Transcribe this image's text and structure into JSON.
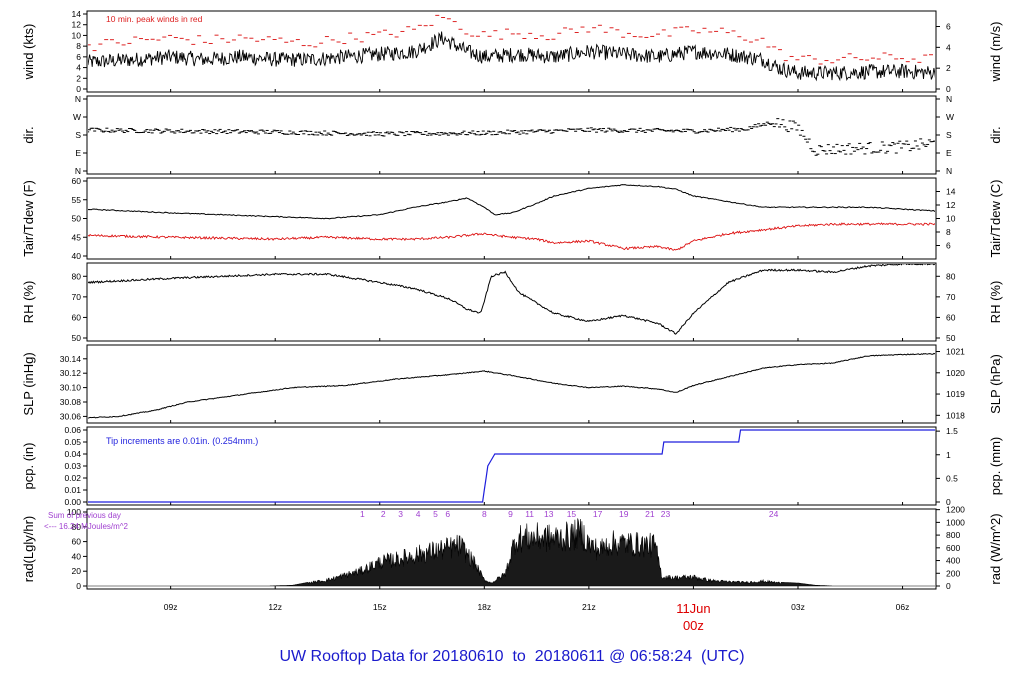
{
  "footer_title": "UW Rooftop Data for 20180610  to  20180611 @ 06:58:24  (UTC)",
  "colors": {
    "series": "#000000",
    "peak": "#dd2222",
    "dew": "#dd1111",
    "precip": "#1f1fdd",
    "rad_note": "#a040d0",
    "day_label": "#dd0000",
    "footer": "#1a1acc"
  },
  "x_axis": {
    "range_hours": [
      6.6,
      30.96
    ],
    "ticks": [
      {
        "h": 9,
        "label": "09z"
      },
      {
        "h": 12,
        "label": "12z"
      },
      {
        "h": 15,
        "label": "15z"
      },
      {
        "h": 18,
        "label": "18z"
      },
      {
        "h": 21,
        "label": "21z"
      },
      {
        "h": 24,
        "label": "00z"
      },
      {
        "h": 27,
        "label": "03z"
      },
      {
        "h": 30,
        "label": "06z"
      }
    ],
    "day_label": "11Jun",
    "day_label_hour": 24
  },
  "chart_data": [
    {
      "type": "line",
      "id": "wind",
      "ylabel_left": "wind (kts)",
      "ylabel_right": "wind (m/s)",
      "ylim": [
        0,
        14
      ],
      "left_ticks": [
        "0",
        "2",
        "4",
        "6",
        "8",
        "10",
        "12",
        "14"
      ],
      "right_ticks": [
        "0",
        "2",
        "4",
        "6"
      ],
      "annotation": "10 min. peak winds in red",
      "series": [
        {
          "name": "wind",
          "x": [
            6.6,
            8,
            9,
            10,
            11,
            12,
            13,
            14,
            15,
            16,
            16.8,
            17.5,
            18,
            19,
            20,
            21,
            22,
            23,
            24,
            25,
            26,
            26.5,
            27,
            28,
            29,
            30,
            30.96
          ],
          "values": [
            5,
            5.5,
            6,
            5.5,
            6,
            5.5,
            5.5,
            6,
            6.5,
            7,
            9.5,
            7,
            6,
            6.5,
            6,
            7,
            6.5,
            6,
            7,
            6.5,
            5.5,
            3.8,
            3,
            3,
            3.2,
            3.3,
            3
          ]
        },
        {
          "name": "peak",
          "x": [
            6.6,
            8,
            9,
            10,
            11,
            12,
            13,
            14,
            15,
            16,
            16.8,
            17.5,
            18,
            19,
            20,
            21,
            22,
            23,
            24,
            25,
            26,
            26.5,
            27,
            28,
            29,
            30,
            30.96
          ],
          "values": [
            8,
            9,
            9.5,
            9,
            9.5,
            9,
            8.5,
            9.5,
            10,
            11,
            13.5,
            11,
            10,
            10.5,
            10,
            11.5,
            10.5,
            10,
            11,
            10.5,
            9,
            6.5,
            5.5,
            5.5,
            5.8,
            5.8,
            5.5
          ]
        }
      ]
    },
    {
      "type": "scatter",
      "id": "dir",
      "ylabel_left": "dir.",
      "ylabel_right": "dir.",
      "ylim": [
        0,
        360
      ],
      "left_ticks": [
        "N",
        "E",
        "S",
        "W",
        "N"
      ],
      "right_ticks": [
        "N",
        "E",
        "S",
        "W",
        "N"
      ],
      "series": [
        {
          "name": "direction",
          "x": [
            6.6,
            9,
            12,
            15,
            18,
            21,
            24,
            25.5,
            26.3,
            27,
            27.5,
            28,
            29,
            30,
            30.96
          ],
          "values": [
            205,
            200,
            195,
            185,
            190,
            205,
            200,
            210,
            245,
            215,
            105,
            110,
            115,
            120,
            140
          ]
        }
      ]
    },
    {
      "type": "line",
      "id": "temp",
      "ylabel_left": "Tair/Tdew (F)",
      "ylabel_right": "Tair/Tdew (C)",
      "ylim": [
        40,
        60
      ],
      "left_ticks": [
        "40",
        "45",
        "50",
        "55",
        "60"
      ],
      "right_ticks": [
        "6",
        "8",
        "10",
        "12",
        "14"
      ],
      "series": [
        {
          "name": "Tair",
          "x": [
            6.6,
            9,
            12,
            13.5,
            15,
            16,
            17,
            17.5,
            18,
            18.3,
            18.8,
            19.5,
            20,
            21,
            22,
            23,
            23.5,
            24,
            25,
            26,
            27,
            28,
            29,
            30,
            30.96
          ],
          "values": [
            52.5,
            51.5,
            50.5,
            50,
            51,
            53,
            54.5,
            55.5,
            53,
            51,
            51.5,
            54,
            56,
            58,
            59,
            58.5,
            57.8,
            56,
            54.5,
            53,
            53,
            53,
            53,
            52.5,
            52
          ]
        },
        {
          "name": "Tdew",
          "x": [
            6.6,
            9,
            12,
            13.5,
            15,
            16,
            17,
            17.5,
            18,
            18.3,
            18.8,
            19.5,
            20,
            21,
            22,
            23,
            23.5,
            24,
            25,
            26,
            27,
            28,
            29,
            30,
            30.96
          ],
          "values": [
            45.5,
            45,
            44.5,
            45,
            44.5,
            44.5,
            45,
            45.5,
            46,
            45.5,
            45,
            44.5,
            43.5,
            44,
            42,
            42.5,
            41.5,
            44,
            46,
            47,
            48,
            48.5,
            48.5,
            48.5,
            48.5
          ]
        }
      ]
    },
    {
      "type": "line",
      "id": "rh",
      "ylabel_left": "RH (%)",
      "ylabel_right": "RH (%)",
      "ylim": [
        50,
        85
      ],
      "left_ticks": [
        "50",
        "60",
        "70",
        "80"
      ],
      "right_ticks": [
        "50",
        "60",
        "70",
        "80"
      ],
      "series": [
        {
          "name": "RH",
          "x": [
            6.6,
            9,
            12,
            13.5,
            15,
            16,
            17,
            17.5,
            17.9,
            18.2,
            18.6,
            19,
            20,
            21,
            22,
            23,
            23.5,
            24,
            25,
            26,
            27,
            28,
            29,
            30,
            30.96
          ],
          "values": [
            77,
            79,
            81,
            81,
            77,
            74,
            69,
            64,
            62,
            80,
            82,
            72,
            62,
            58,
            61,
            57,
            52,
            62,
            77,
            83,
            83,
            82,
            85,
            86,
            86
          ]
        }
      ]
    },
    {
      "type": "line",
      "id": "slp",
      "ylabel_left": "SLP (inHg)",
      "ylabel_right": "SLP (hPa)",
      "ylim": [
        30.055,
        30.155
      ],
      "left_ticks": [
        "30.06",
        "30.08",
        "30.10",
        "30.12",
        "30.14"
      ],
      "right_ticks": [
        "1018",
        "1019",
        "1020",
        "1021"
      ],
      "series": [
        {
          "name": "SLP",
          "x": [
            6.6,
            7.5,
            8.5,
            9.5,
            11,
            12.5,
            14,
            15.5,
            17,
            18,
            19,
            20,
            21,
            22,
            23,
            23.5,
            24,
            25,
            26,
            27,
            28,
            29,
            30,
            30.96
          ],
          "values": [
            30.058,
            30.06,
            30.068,
            30.08,
            30.09,
            30.1,
            30.103,
            30.112,
            30.118,
            30.123,
            30.115,
            30.106,
            30.1,
            30.102,
            30.098,
            30.093,
            30.103,
            30.115,
            30.127,
            30.132,
            30.134,
            30.144,
            30.146,
            30.147
          ]
        }
      ]
    },
    {
      "type": "line",
      "id": "pcp",
      "ylabel_left": "pcp. (in)",
      "ylabel_right": "pcp. (mm)",
      "ylim": [
        0,
        0.06
      ],
      "left_ticks": [
        "0.00",
        "0.01",
        "0.02",
        "0.03",
        "0.04",
        "0.05",
        "0.06"
      ],
      "right_ticks": [
        "0",
        "0.5",
        "1",
        "1.5"
      ],
      "annotation": "Tip increments are 0.01in. (0.254mm.)",
      "series": [
        {
          "name": "precip",
          "x": [
            6.6,
            17.95,
            18.0,
            18.05,
            18.1,
            18.2,
            18.3,
            23.1,
            23.15,
            25.3,
            25.35,
            30.96
          ],
          "values": [
            0,
            0,
            0.01,
            0.02,
            0.03,
            0.035,
            0.04,
            0.04,
            0.05,
            0.05,
            0.06,
            0.06
          ]
        }
      ]
    },
    {
      "type": "area",
      "id": "rad",
      "ylabel_left": "rad(Lgly/hr)",
      "ylabel_right": "rad (W/m^2)",
      "ylim": [
        0,
        100
      ],
      "left_ticks": [
        "0",
        "20",
        "40",
        "60",
        "80",
        "100"
      ],
      "right_ticks": [
        "0",
        "200",
        "400",
        "600",
        "800",
        "1000",
        "1200"
      ],
      "note_line1": "Sum of previous day",
      "note_line2": "<--- 16.24 MJoules/m^2",
      "hour_markers": [
        {
          "h": 14.5,
          "label": "1"
        },
        {
          "h": 15.1,
          "label": "2"
        },
        {
          "h": 15.6,
          "label": "3"
        },
        {
          "h": 16.1,
          "label": "4"
        },
        {
          "h": 16.6,
          "label": "5"
        },
        {
          "h": 16.95,
          "label": "6"
        },
        {
          "h": 18.0,
          "label": "8"
        },
        {
          "h": 18.75,
          "label": "9"
        },
        {
          "h": 19.3,
          "label": "11"
        },
        {
          "h": 19.85,
          "label": "13"
        },
        {
          "h": 20.5,
          "label": "15"
        },
        {
          "h": 21.25,
          "label": "17"
        },
        {
          "h": 22.0,
          "label": "19"
        },
        {
          "h": 22.75,
          "label": "21"
        },
        {
          "h": 23.2,
          "label": "23"
        },
        {
          "h": 26.3,
          "label": "24"
        }
      ],
      "series": [
        {
          "name": "radiation",
          "x": [
            6.6,
            11.8,
            12.5,
            13.5,
            14.5,
            15,
            15.5,
            16,
            16.5,
            17,
            17.3,
            17.7,
            18,
            18.2,
            18.6,
            18.9,
            19.5,
            20,
            20.5,
            20.8,
            21,
            21.3,
            21.6,
            22,
            22.4,
            22.9,
            23.1,
            23.5,
            24,
            24.5,
            25,
            25.5,
            26,
            26.5,
            27,
            27.5,
            28,
            29,
            30.96
          ],
          "values": [
            0,
            0,
            1,
            10,
            26,
            40,
            45,
            52,
            58,
            64,
            68,
            40,
            10,
            5,
            20,
            80,
            82,
            80,
            84,
            90,
            70,
            60,
            72,
            72,
            70,
            68,
            15,
            14,
            15,
            9,
            7,
            6,
            8,
            5,
            4,
            1,
            0,
            0,
            0
          ]
        }
      ]
    }
  ]
}
